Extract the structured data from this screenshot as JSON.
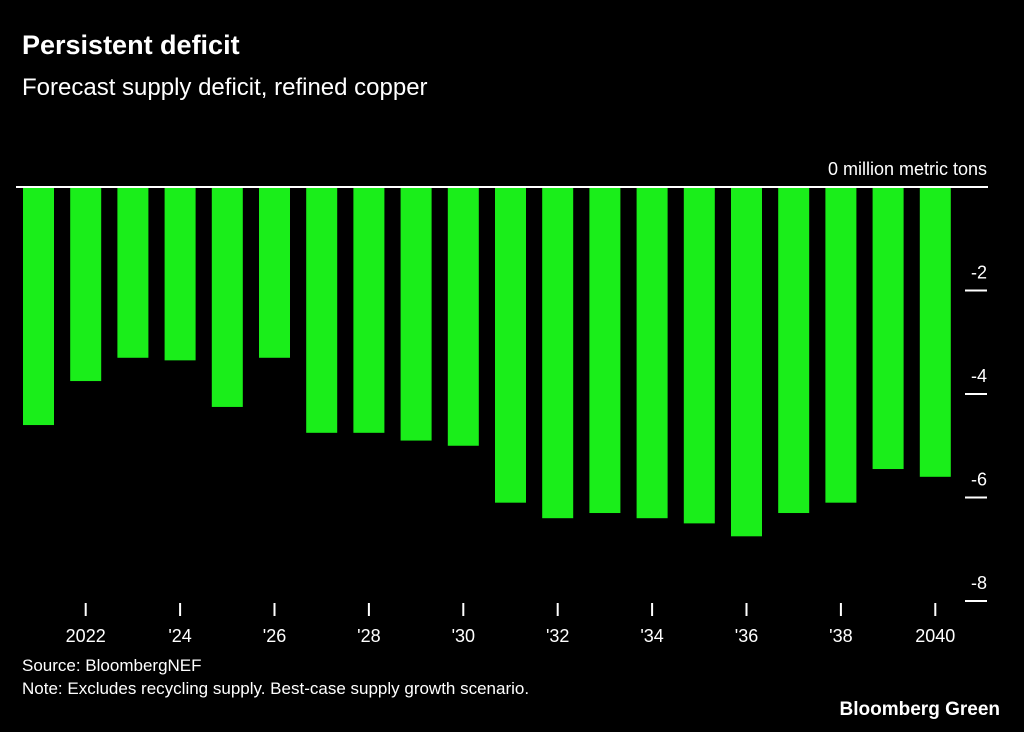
{
  "title": "Persistent deficit",
  "subtitle": "Forecast supply deficit, refined copper",
  "source": "Source: BloombergNEF",
  "note": "Note: Excludes recycling supply. Best-case supply growth scenario.",
  "logo": "Bloomberg Green",
  "chart_data": {
    "type": "bar",
    "categories": [
      "2021",
      "2022",
      "2023",
      "2024",
      "2025",
      "2026",
      "2027",
      "2028",
      "2029",
      "2030",
      "2031",
      "2032",
      "2033",
      "2034",
      "2035",
      "2036",
      "2037",
      "2038",
      "2039",
      "2040"
    ],
    "values": [
      -4.6,
      -3.75,
      -3.3,
      -3.35,
      -4.25,
      -3.3,
      -4.75,
      -4.75,
      -4.9,
      -5.0,
      -6.1,
      -6.4,
      -6.3,
      -6.4,
      -6.5,
      -6.75,
      -6.3,
      -6.1,
      -5.45,
      -5.6
    ],
    "ylabel": "million metric tons",
    "ylim": [
      -8,
      0
    ],
    "yticks": [
      0,
      -2,
      -4,
      -6,
      -8
    ],
    "ytick_labels": [
      "0 million metric tons",
      "-2",
      "-4",
      "-6",
      "-8"
    ],
    "xtick_labels": [
      {
        "year": "2022",
        "label": "2022"
      },
      {
        "year": "2024",
        "label": "'24"
      },
      {
        "year": "2026",
        "label": "'26"
      },
      {
        "year": "2028",
        "label": "'28"
      },
      {
        "year": "2030",
        "label": "'30"
      },
      {
        "year": "2032",
        "label": "'32"
      },
      {
        "year": "2034",
        "label": "'34"
      },
      {
        "year": "2036",
        "label": "'36"
      },
      {
        "year": "2038",
        "label": "'38"
      },
      {
        "year": "2040",
        "label": "2040"
      }
    ],
    "bar_color": "#1aee1a",
    "grid": false,
    "legend": "none"
  }
}
